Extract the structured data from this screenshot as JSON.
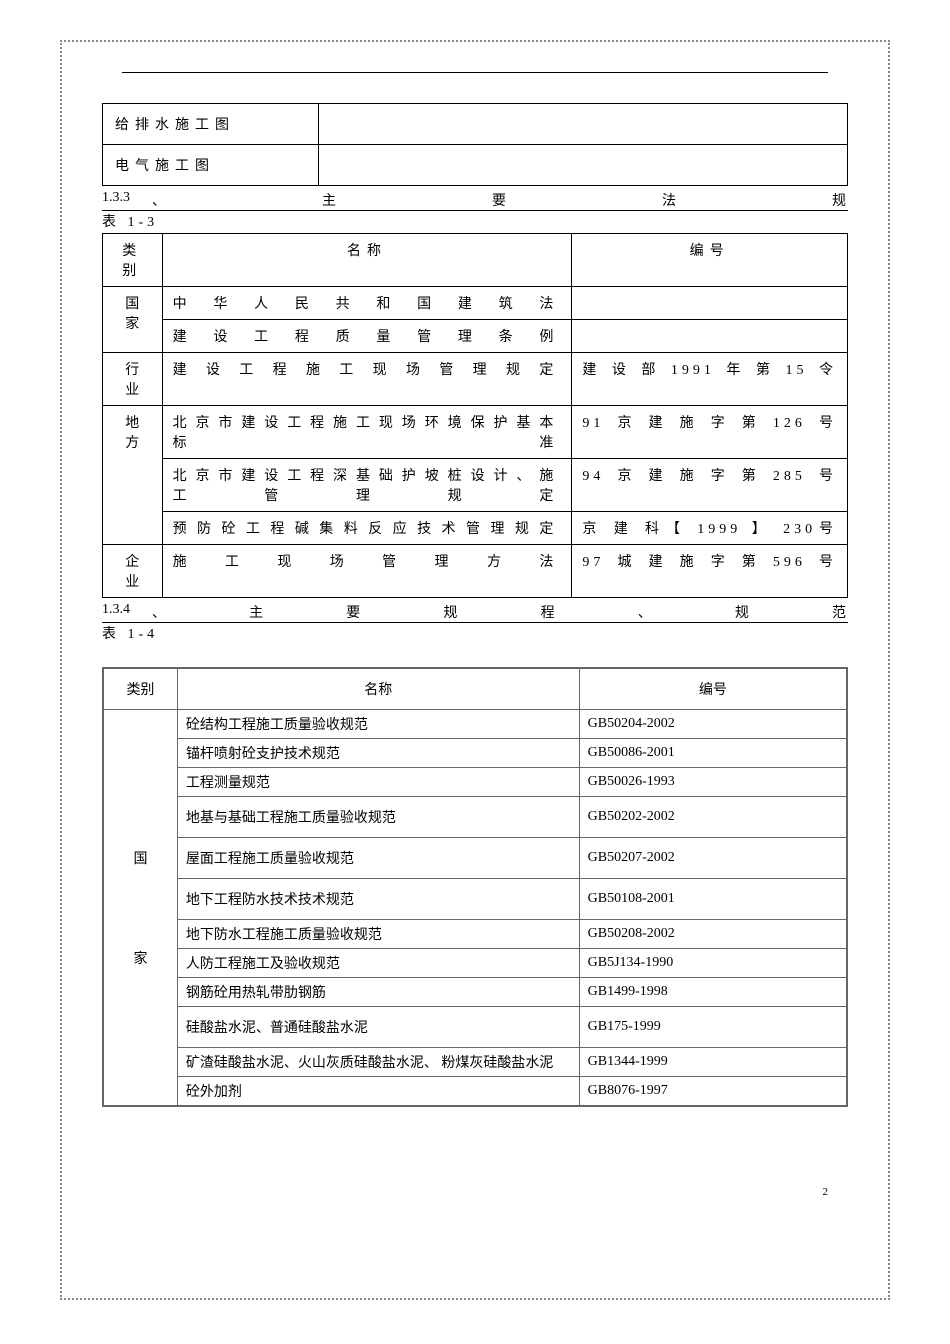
{
  "colors": {
    "text": "#000000",
    "background": "#ffffff",
    "border_main": "#000000",
    "border_secondary": "#666666",
    "dotted_border": "#888888"
  },
  "typography": {
    "family": "SimSun",
    "size_body": 14,
    "size_pagenum": 11
  },
  "top_table": {
    "rows": [
      {
        "col1": "给排水施工图",
        "col2": ""
      },
      {
        "col1": "电气施工图",
        "col2": ""
      }
    ]
  },
  "section133": {
    "number": "1.3.3",
    "title_chars": [
      "、",
      "主",
      "要",
      "法",
      "规"
    ],
    "table_ref": "表  1-3",
    "header": {
      "cat": "类别",
      "name": "名称",
      "code": "编号"
    },
    "rows": [
      {
        "cat": "国家",
        "name": "中华人民共和国建筑法",
        "code": "",
        "rowspan": 2
      },
      {
        "cat": "",
        "name": "建设工程质量管理条例",
        "code": ""
      },
      {
        "cat": "行业",
        "name": "建设工程施工现场管理规定",
        "code": "建设部1991年第15令",
        "rowspan": 1
      },
      {
        "cat": "地方",
        "name": "北京市建设工程施工现场环境保护基本标准",
        "code": "91京建施字第126号",
        "rowspan": 3
      },
      {
        "cat": "",
        "name": "北京市建设工程深基础护坡桩设计、施工管理规定",
        "code": "94京建施字第285号"
      },
      {
        "cat": "",
        "name": "预防砼工程碱集料反应技术管理规定",
        "code": "京 建 科【 1999 】 230号"
      },
      {
        "cat": "企业",
        "name": "施工现场管理方法",
        "code": "97城建施字第596号",
        "rowspan": 1
      }
    ]
  },
  "section134": {
    "number": "1.3.4",
    "title_chars": [
      "、",
      "主",
      "要",
      "规",
      "程",
      "、",
      "规",
      "范"
    ],
    "table_ref": "表  1-4",
    "header": {
      "cat": "类别",
      "name": "名称",
      "code": "编号"
    },
    "cat_label": "国   家",
    "rows": [
      {
        "name": "砼结构工程施工质量验收规范",
        "code": "GB50204-2002",
        "tall": false
      },
      {
        "name": "锚杆喷射砼支护技术规范",
        "code": "GB50086-2001",
        "tall": false
      },
      {
        "name": "工程测量规范",
        "code": "GB50026-1993",
        "tall": false
      },
      {
        "name": "地基与基础工程施工质量验收规范",
        "code": "GB50202-2002",
        "tall": true
      },
      {
        "name": "屋面工程施工质量验收规范",
        "code": "GB50207-2002",
        "tall": true
      },
      {
        "name": "地下工程防水技术技术规范",
        "code": "GB50108-2001",
        "tall": true
      },
      {
        "name": "地下防水工程施工质量验收规范",
        "code": "GB50208-2002",
        "tall": false
      },
      {
        "name": "人防工程施工及验收规范",
        "code": "GB5J134-1990",
        "tall": false
      },
      {
        "name": "钢筋砼用热轧带肋钢筋",
        "code": "GB1499-1998",
        "tall": false
      },
      {
        "name": "硅酸盐水泥、普通硅酸盐水泥",
        "code": "GB175-1999",
        "tall": true
      },
      {
        "name": "矿渣硅酸盐水泥、火山灰质硅酸盐水泥、   粉煤灰硅酸盐水泥",
        "code": "GB1344-1999",
        "tall": false
      },
      {
        "name": "砼外加剂",
        "code": "GB8076-1997",
        "tall": false
      }
    ]
  },
  "page_number": "2"
}
